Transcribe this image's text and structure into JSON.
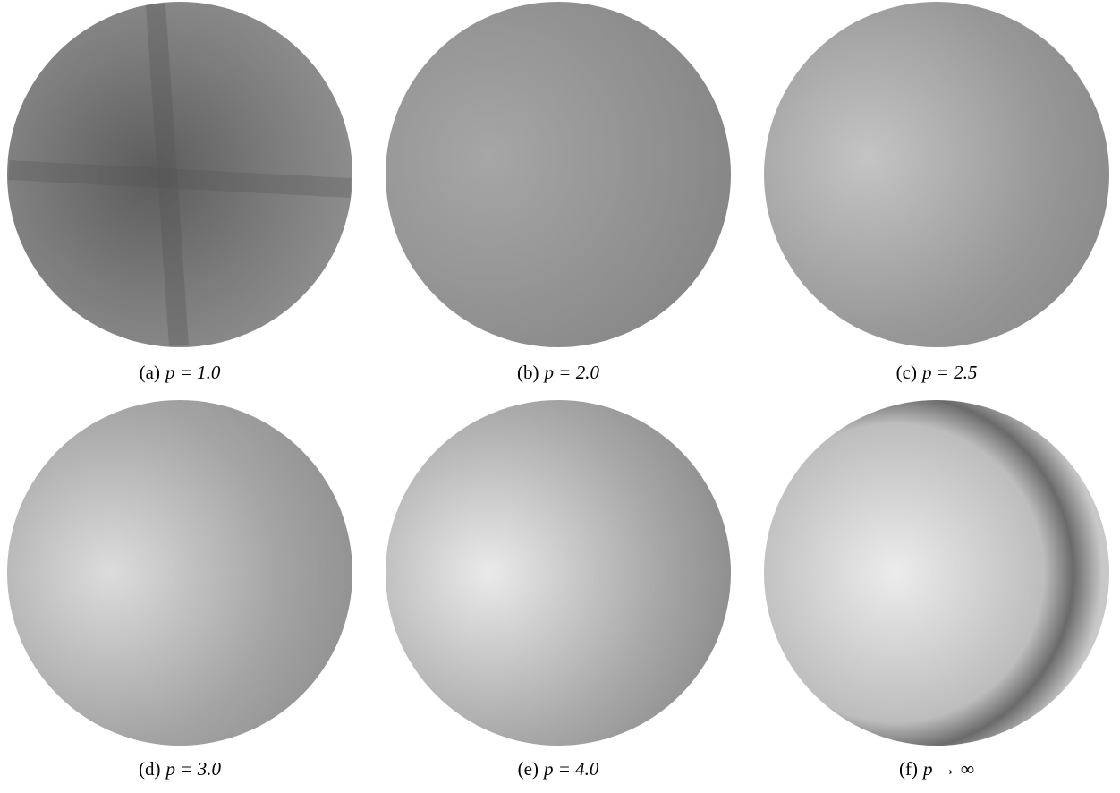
{
  "figure": {
    "panels": [
      {
        "label": "(a)",
        "caption": "p = 1.0"
      },
      {
        "label": "(b)",
        "caption": "p = 2.0"
      },
      {
        "label": "(c)",
        "caption": "p = 2.5"
      },
      {
        "label": "(d)",
        "caption": "p = 3.0"
      },
      {
        "label": "(e)",
        "caption": "p = 4.0"
      },
      {
        "label": "(f)",
        "caption": "p → ∞"
      }
    ]
  }
}
